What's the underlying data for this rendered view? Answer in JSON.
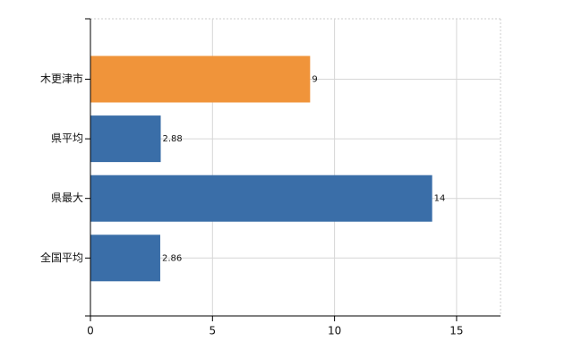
{
  "chart_data": {
    "type": "bar",
    "orientation": "horizontal",
    "categories": [
      "木更津市",
      "県平均",
      "県最大",
      "全国平均"
    ],
    "values": [
      9,
      2.88,
      14,
      2.86
    ],
    "colors": [
      "#f0943a",
      "#3a6ea8",
      "#3a6ea8",
      "#3a6ea8"
    ],
    "xlim": [
      0,
      16.8
    ],
    "xticks": [
      0,
      5,
      10,
      15
    ],
    "grid": true
  }
}
